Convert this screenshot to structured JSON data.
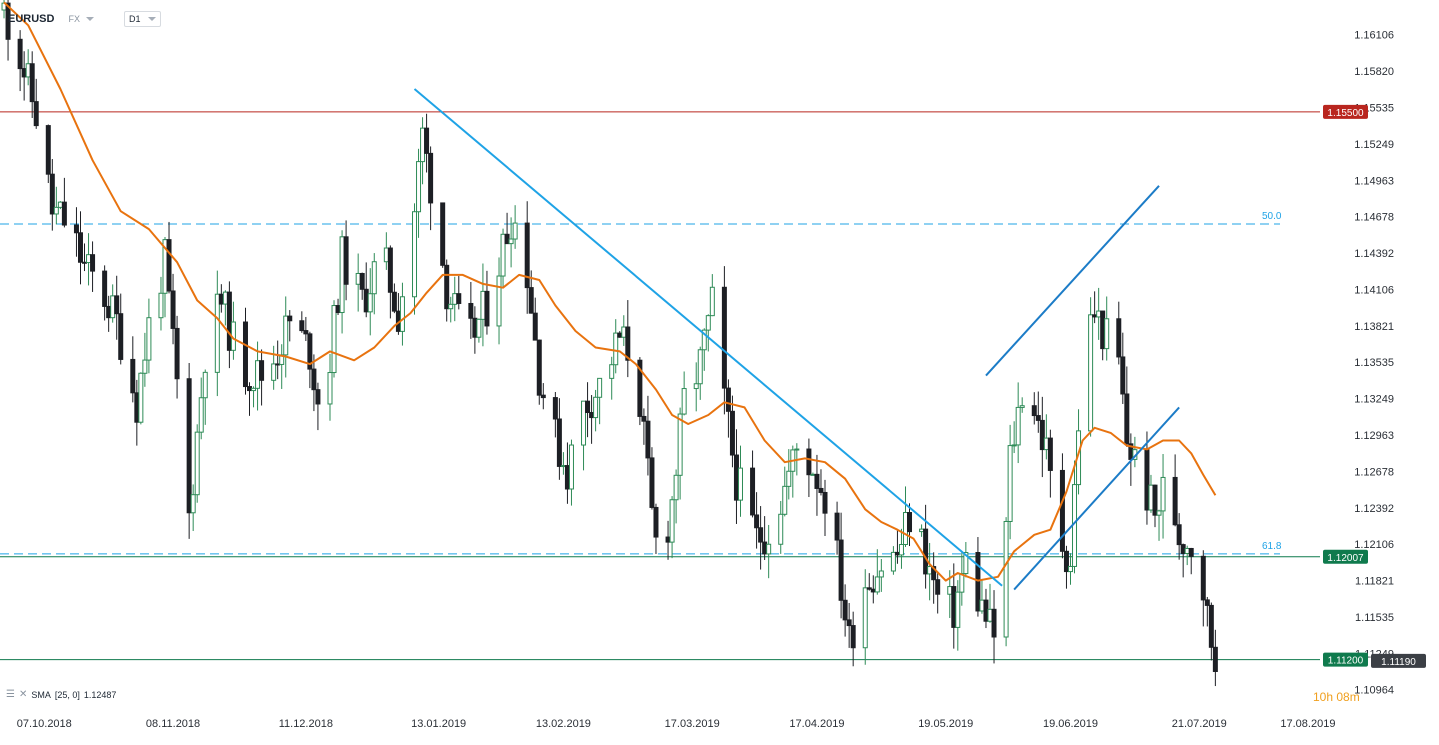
{
  "toolbar": {
    "symbol": "EURUSD",
    "market": "FX",
    "timeframe": "D1"
  },
  "indicator": {
    "name": "SMA",
    "params": "[25, 0]",
    "value": "1.12487"
  },
  "colors": {
    "bull": "#2e8b57",
    "bear": "#1d1f24",
    "sma": "#e8730f",
    "trend": "#1fa3e6",
    "channel": "#1c7cc7",
    "resistance": "#b9261f",
    "support": "#0f7a4d",
    "price_tag": "#3b3f45",
    "fib": "#1fa3e6"
  },
  "chart_data": {
    "type": "candlestick",
    "symbol": "EURUSD",
    "timeframe": "D1",
    "ylim": [
      1.1082,
      1.163
    ],
    "x_range": [
      "2018-09-26",
      "2019-08-20"
    ],
    "xticks": [
      {
        "date": "2018-10-07",
        "label": "07.10.2018"
      },
      {
        "date": "2018-11-08",
        "label": "08.11.2018"
      },
      {
        "date": "2018-12-11",
        "label": "11.12.2018"
      },
      {
        "date": "2019-01-13",
        "label": "13.01.2019"
      },
      {
        "date": "2019-02-13",
        "label": "13.02.2019"
      },
      {
        "date": "2019-03-17",
        "label": "17.03.2019"
      },
      {
        "date": "2019-04-17",
        "label": "17.04.2019"
      },
      {
        "date": "2019-05-19",
        "label": "19.05.2019"
      },
      {
        "date": "2019-06-19",
        "label": "19.06.2019"
      },
      {
        "date": "2019-07-21",
        "label": "21.07.2019"
      },
      {
        "date": "2019-08-17",
        "label": "17.08.2019"
      }
    ],
    "yticks": [
      "1.16106",
      "1.15820",
      "1.15535",
      "1.15249",
      "1.14963",
      "1.14678",
      "1.14392",
      "1.14106",
      "1.13821",
      "1.13535",
      "1.13249",
      "1.12963",
      "1.12678",
      "1.12392",
      "1.12106",
      "1.11821",
      "1.11535",
      "1.11249",
      "1.10964"
    ],
    "horizontal_levels": [
      {
        "value": 1.155,
        "label": "1.15500",
        "role": "resistance"
      },
      {
        "value": 1.12007,
        "label": "1.12007",
        "role": "support"
      },
      {
        "value": 1.112,
        "label": "1.11200",
        "role": "support"
      }
    ],
    "fib_levels": [
      {
        "value": 1.1462,
        "label": "50.0"
      },
      {
        "value": 1.1203,
        "label": "61.8"
      }
    ],
    "last_price": {
      "value": 1.1119,
      "label": "1.11190"
    },
    "countdown": "10h 08m",
    "sma_period": 25,
    "lines": [
      {
        "kind": "downtrend",
        "from": {
          "date": "2019-01-07",
          "price": 1.1568
        },
        "to": {
          "date": "2019-06-02",
          "price": 1.1178
        }
      },
      {
        "kind": "channel-upper",
        "from": {
          "date": "2019-05-29",
          "price": 1.1343
        },
        "to": {
          "date": "2019-07-11",
          "price": 1.1492
        }
      },
      {
        "kind": "channel-lower",
        "from": {
          "date": "2019-06-05",
          "price": 1.1175
        },
        "to": {
          "date": "2019-07-16",
          "price": 1.1318
        }
      }
    ],
    "anchors": [
      {
        "date": "2018-09-27",
        "price": 1.163
      },
      {
        "date": "2018-10-01",
        "price": 1.1595
      },
      {
        "date": "2018-10-05",
        "price": 1.1548
      },
      {
        "date": "2018-10-09",
        "price": 1.1472
      },
      {
        "date": "2018-10-13",
        "price": 1.1462
      },
      {
        "date": "2018-10-17",
        "price": 1.1428
      },
      {
        "date": "2018-10-21",
        "price": 1.1412
      },
      {
        "date": "2018-10-25",
        "price": 1.1385
      },
      {
        "date": "2018-10-30",
        "price": 1.1322
      },
      {
        "date": "2018-11-03",
        "price": 1.1402
      },
      {
        "date": "2018-11-06",
        "price": 1.1432
      },
      {
        "date": "2018-11-09",
        "price": 1.1335
      },
      {
        "date": "2018-11-12",
        "price": 1.1232
      },
      {
        "date": "2018-11-16",
        "price": 1.1362
      },
      {
        "date": "2018-11-20",
        "price": 1.1402
      },
      {
        "date": "2018-11-25",
        "price": 1.1348
      },
      {
        "date": "2018-12-01",
        "price": 1.1342
      },
      {
        "date": "2018-12-07",
        "price": 1.1385
      },
      {
        "date": "2018-12-12",
        "price": 1.1362
      },
      {
        "date": "2018-12-15",
        "price": 1.1305
      },
      {
        "date": "2018-12-20",
        "price": 1.1435
      },
      {
        "date": "2018-12-25",
        "price": 1.1402
      },
      {
        "date": "2018-12-30",
        "price": 1.1438
      },
      {
        "date": "2019-01-03",
        "price": 1.1392
      },
      {
        "date": "2019-01-06",
        "price": 1.1445
      },
      {
        "date": "2019-01-09",
        "price": 1.1532
      },
      {
        "date": "2019-01-12",
        "price": 1.1475
      },
      {
        "date": "2019-01-15",
        "price": 1.1412
      },
      {
        "date": "2019-01-20",
        "price": 1.1365
      },
      {
        "date": "2019-01-25",
        "price": 1.1398
      },
      {
        "date": "2019-01-31",
        "price": 1.1468
      },
      {
        "date": "2019-02-03",
        "price": 1.1452
      },
      {
        "date": "2019-02-07",
        "price": 1.1345
      },
      {
        "date": "2019-02-10",
        "price": 1.1302
      },
      {
        "date": "2019-02-14",
        "price": 1.1268
      },
      {
        "date": "2019-02-18",
        "price": 1.1318
      },
      {
        "date": "2019-02-22",
        "price": 1.1335
      },
      {
        "date": "2019-02-27",
        "price": 1.1372
      },
      {
        "date": "2019-03-03",
        "price": 1.1355
      },
      {
        "date": "2019-03-07",
        "price": 1.1232
      },
      {
        "date": "2019-03-09",
        "price": 1.1192
      },
      {
        "date": "2019-03-12",
        "price": 1.1245
      },
      {
        "date": "2019-03-15",
        "price": 1.1322
      },
      {
        "date": "2019-03-19",
        "price": 1.1352
      },
      {
        "date": "2019-03-22",
        "price": 1.1398
      },
      {
        "date": "2019-03-25",
        "price": 1.1322
      },
      {
        "date": "2019-03-28",
        "price": 1.1262
      },
      {
        "date": "2019-04-02",
        "price": 1.1215
      },
      {
        "date": "2019-04-06",
        "price": 1.1225
      },
      {
        "date": "2019-04-12",
        "price": 1.1285
      },
      {
        "date": "2019-04-16",
        "price": 1.1272
      },
      {
        "date": "2019-04-20",
        "price": 1.1242
      },
      {
        "date": "2019-04-25",
        "price": 1.1135
      },
      {
        "date": "2019-04-29",
        "price": 1.1182
      },
      {
        "date": "2019-05-03",
        "price": 1.1195
      },
      {
        "date": "2019-05-07",
        "price": 1.1202
      },
      {
        "date": "2019-05-10",
        "price": 1.1232
      },
      {
        "date": "2019-05-13",
        "price": 1.1212
      },
      {
        "date": "2019-05-17",
        "price": 1.1168
      },
      {
        "date": "2019-05-21",
        "price": 1.1158
      },
      {
        "date": "2019-05-24",
        "price": 1.1198
      },
      {
        "date": "2019-05-27",
        "price": 1.1168
      },
      {
        "date": "2019-05-31",
        "price": 1.1138
      },
      {
        "date": "2019-06-02",
        "price": 1.1168
      },
      {
        "date": "2019-06-04",
        "price": 1.1278
      },
      {
        "date": "2019-06-07",
        "price": 1.1332
      },
      {
        "date": "2019-06-10",
        "price": 1.1318
      },
      {
        "date": "2019-06-13",
        "price": 1.1282
      },
      {
        "date": "2019-06-16",
        "price": 1.1218
      },
      {
        "date": "2019-06-19",
        "price": 1.1198
      },
      {
        "date": "2019-06-22",
        "price": 1.1362
      },
      {
        "date": "2019-06-25",
        "price": 1.1392
      },
      {
        "date": "2019-06-28",
        "price": 1.1372
      },
      {
        "date": "2019-07-01",
        "price": 1.1352
      },
      {
        "date": "2019-07-03",
        "price": 1.1292
      },
      {
        "date": "2019-07-06",
        "price": 1.1268
      },
      {
        "date": "2019-07-10",
        "price": 1.1232
      },
      {
        "date": "2019-07-13",
        "price": 1.1262
      },
      {
        "date": "2019-07-16",
        "price": 1.1218
      },
      {
        "date": "2019-07-19",
        "price": 1.1212
      },
      {
        "date": "2019-07-21",
        "price": 1.1202
      },
      {
        "date": "2019-07-23",
        "price": 1.1152
      },
      {
        "date": "2019-07-25",
        "price": 1.1119
      }
    ],
    "sma_curve": [
      {
        "date": "2018-09-27",
        "price": 1.1636
      },
      {
        "date": "2018-10-03",
        "price": 1.1618
      },
      {
        "date": "2018-10-11",
        "price": 1.1568
      },
      {
        "date": "2018-10-19",
        "price": 1.1512
      },
      {
        "date": "2018-10-26",
        "price": 1.1472
      },
      {
        "date": "2018-11-02",
        "price": 1.1458
      },
      {
        "date": "2018-11-09",
        "price": 1.1432
      },
      {
        "date": "2018-11-14",
        "price": 1.1402
      },
      {
        "date": "2018-11-19",
        "price": 1.1388
      },
      {
        "date": "2018-11-23",
        "price": 1.1372
      },
      {
        "date": "2018-11-29",
        "price": 1.1362
      },
      {
        "date": "2018-12-06",
        "price": 1.1358
      },
      {
        "date": "2018-12-12",
        "price": 1.1352
      },
      {
        "date": "2018-12-17",
        "price": 1.1362
      },
      {
        "date": "2018-12-23",
        "price": 1.1355
      },
      {
        "date": "2018-12-28",
        "price": 1.1365
      },
      {
        "date": "2019-01-02",
        "price": 1.1382
      },
      {
        "date": "2019-01-06",
        "price": 1.1392
      },
      {
        "date": "2019-01-10",
        "price": 1.1408
      },
      {
        "date": "2019-01-14",
        "price": 1.1422
      },
      {
        "date": "2019-01-19",
        "price": 1.1422
      },
      {
        "date": "2019-01-24",
        "price": 1.1415
      },
      {
        "date": "2019-01-29",
        "price": 1.1412
      },
      {
        "date": "2019-02-02",
        "price": 1.1422
      },
      {
        "date": "2019-02-07",
        "price": 1.1418
      },
      {
        "date": "2019-02-11",
        "price": 1.1398
      },
      {
        "date": "2019-02-16",
        "price": 1.1378
      },
      {
        "date": "2019-02-21",
        "price": 1.1365
      },
      {
        "date": "2019-02-27",
        "price": 1.1362
      },
      {
        "date": "2019-03-03",
        "price": 1.1352
      },
      {
        "date": "2019-03-08",
        "price": 1.1332
      },
      {
        "date": "2019-03-12",
        "price": 1.1312
      },
      {
        "date": "2019-03-16",
        "price": 1.1305
      },
      {
        "date": "2019-03-21",
        "price": 1.1312
      },
      {
        "date": "2019-03-25",
        "price": 1.1322
      },
      {
        "date": "2019-03-30",
        "price": 1.1318
      },
      {
        "date": "2019-04-04",
        "price": 1.1292
      },
      {
        "date": "2019-04-09",
        "price": 1.1275
      },
      {
        "date": "2019-04-14",
        "price": 1.1278
      },
      {
        "date": "2019-04-19",
        "price": 1.1275
      },
      {
        "date": "2019-04-24",
        "price": 1.1262
      },
      {
        "date": "2019-04-29",
        "price": 1.1238
      },
      {
        "date": "2019-05-03",
        "price": 1.1228
      },
      {
        "date": "2019-05-07",
        "price": 1.1222
      },
      {
        "date": "2019-05-11",
        "price": 1.1215
      },
      {
        "date": "2019-05-15",
        "price": 1.1195
      },
      {
        "date": "2019-05-19",
        "price": 1.1182
      },
      {
        "date": "2019-05-22",
        "price": 1.1188
      },
      {
        "date": "2019-05-27",
        "price": 1.1182
      },
      {
        "date": "2019-06-01",
        "price": 1.1185
      },
      {
        "date": "2019-06-05",
        "price": 1.1205
      },
      {
        "date": "2019-06-10",
        "price": 1.1218
      },
      {
        "date": "2019-06-14",
        "price": 1.1222
      },
      {
        "date": "2019-06-18",
        "price": 1.1252
      },
      {
        "date": "2019-06-22",
        "price": 1.1292
      },
      {
        "date": "2019-06-25",
        "price": 1.1302
      },
      {
        "date": "2019-06-29",
        "price": 1.1298
      },
      {
        "date": "2019-07-03",
        "price": 1.1288
      },
      {
        "date": "2019-07-08",
        "price": 1.1285
      },
      {
        "date": "2019-07-12",
        "price": 1.1292
      },
      {
        "date": "2019-07-16",
        "price": 1.1292
      },
      {
        "date": "2019-07-19",
        "price": 1.1282
      },
      {
        "date": "2019-07-22",
        "price": 1.1265
      },
      {
        "date": "2019-07-25",
        "price": 1.1249
      }
    ]
  }
}
